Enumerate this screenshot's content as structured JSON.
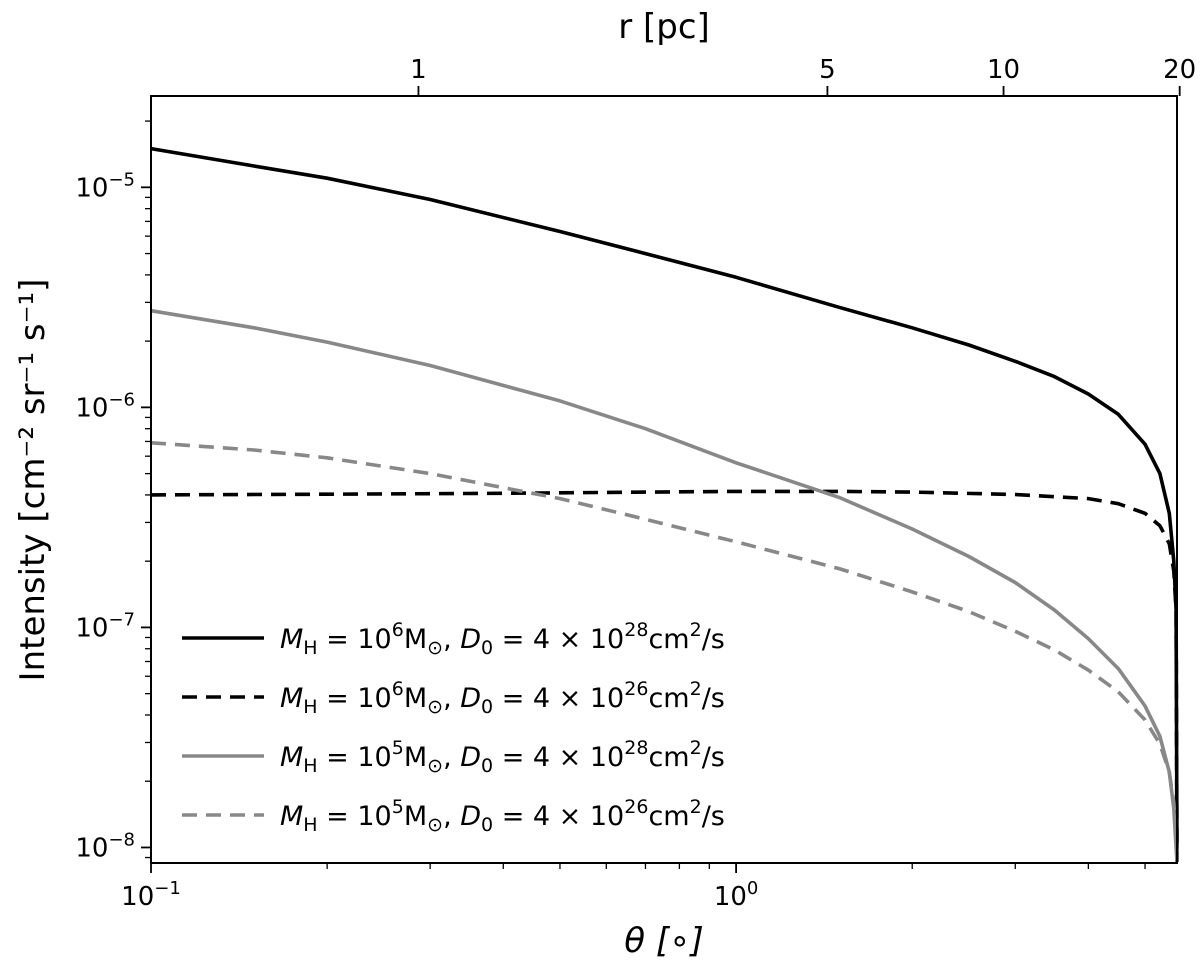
{
  "chart_data": {
    "type": "line",
    "xlabel": "θ [∘]",
    "x_scale": "log",
    "xlim": [
      0.1,
      5.67
    ],
    "xticks": [
      {
        "value": 0.1,
        "base": "10",
        "exp": "−1"
      },
      {
        "value": 1,
        "base": "10",
        "exp": "0"
      }
    ],
    "top_xlabel": "r [pc]",
    "top_axis": {
      "unit": "pc",
      "deg_per_pc": 0.2865
    },
    "top_xticks": [
      {
        "value": 1,
        "label": "1"
      },
      {
        "value": 5,
        "label": "5"
      },
      {
        "value": 10,
        "label": "10"
      },
      {
        "value": 20,
        "label": "20"
      }
    ],
    "ylabel": "Intensity [cm⁻² sr⁻¹ s⁻¹]",
    "y_scale": "log",
    "ylim": [
      8.5e-09,
      2.6e-05
    ],
    "yticks": [
      {
        "value": 1e-05,
        "base": "10",
        "exp": "−5"
      },
      {
        "value": 1e-06,
        "base": "10",
        "exp": "−6"
      },
      {
        "value": 1e-07,
        "base": "10",
        "exp": "−7"
      },
      {
        "value": 1e-08,
        "base": "10",
        "exp": "−8"
      }
    ],
    "series": [
      {
        "name": "M_H = 10^6 M⊙, D0 = 4 × 10^28 cm²/s",
        "legend": {
          "m_exp": "6",
          "d_exp": "28"
        },
        "color": "#000000",
        "dash": "solid",
        "x": [
          0.1,
          0.15,
          0.2,
          0.3,
          0.5,
          0.7,
          1.0,
          1.5,
          2.0,
          2.5,
          3.0,
          3.5,
          4.0,
          4.5,
          5.0,
          5.3,
          5.5,
          5.6,
          5.65,
          5.67
        ],
        "y": [
          1.5e-05,
          1.25e-05,
          1.1e-05,
          8.8e-06,
          6.3e-06,
          5e-06,
          3.9e-06,
          2.85e-06,
          2.3e-06,
          1.92e-06,
          1.62e-06,
          1.38e-06,
          1.15e-06,
          9.3e-07,
          6.8e-07,
          5e-07,
          3.3e-07,
          2e-07,
          1.2e-07,
          8.6e-09
        ]
      },
      {
        "name": "M_H = 10^6 M⊙, D0 = 4 × 10^26 cm²/s",
        "legend": {
          "m_exp": "6",
          "d_exp": "26"
        },
        "color": "#000000",
        "dash": "dashed",
        "x": [
          0.1,
          0.2,
          0.4,
          0.7,
          1.0,
          1.5,
          2.0,
          3.0,
          4.0,
          4.5,
          5.0,
          5.3,
          5.5,
          5.6,
          5.65,
          5.67
        ],
        "y": [
          4e-07,
          4.03e-07,
          4.07e-07,
          4.12e-07,
          4.15e-07,
          4.15e-07,
          4.12e-07,
          4.02e-07,
          3.85e-07,
          3.65e-07,
          3.3e-07,
          2.9e-07,
          2.4e-07,
          1.8e-07,
          1.2e-07,
          8.6e-09
        ]
      },
      {
        "name": "M_H = 10^5 M⊙, D0 = 4 × 10^28 cm²/s",
        "legend": {
          "m_exp": "5",
          "d_exp": "28"
        },
        "color": "#888888",
        "dash": "solid",
        "x": [
          0.1,
          0.15,
          0.2,
          0.3,
          0.5,
          0.7,
          1.0,
          1.5,
          2.0,
          2.5,
          3.0,
          3.5,
          4.0,
          4.5,
          5.0,
          5.3,
          5.5,
          5.6,
          5.65,
          5.67
        ],
        "y": [
          2.75e-06,
          2.3e-06,
          1.98e-06,
          1.55e-06,
          1.07e-06,
          8e-07,
          5.6e-07,
          3.9e-07,
          2.8e-07,
          2.1e-07,
          1.6e-07,
          1.2e-07,
          8.9e-08,
          6.5e-08,
          4.4e-08,
          3.2e-08,
          2.2e-08,
          1.5e-08,
          1e-08,
          8.6e-09
        ]
      },
      {
        "name": "M_H = 10^5 M⊙, D0 = 4 × 10^26 cm²/s",
        "legend": {
          "m_exp": "5",
          "d_exp": "26"
        },
        "color": "#888888",
        "dash": "dashed",
        "x": [
          0.1,
          0.15,
          0.2,
          0.3,
          0.5,
          0.7,
          1.0,
          1.5,
          2.0,
          2.5,
          3.0,
          3.5,
          4.0,
          4.5,
          5.0,
          5.3,
          5.5,
          5.6,
          5.65,
          5.67
        ],
        "y": [
          6.9e-07,
          6.4e-07,
          5.9e-07,
          5e-07,
          3.85e-07,
          3.1e-07,
          2.45e-07,
          1.85e-07,
          1.45e-07,
          1.18e-07,
          9.6e-08,
          7.9e-08,
          6.4e-08,
          5.1e-08,
          3.8e-08,
          2.95e-08,
          2.2e-08,
          1.6e-08,
          1.1e-08,
          8.6e-09
        ]
      }
    ],
    "legend_position": "lower-left",
    "grid": false
  }
}
